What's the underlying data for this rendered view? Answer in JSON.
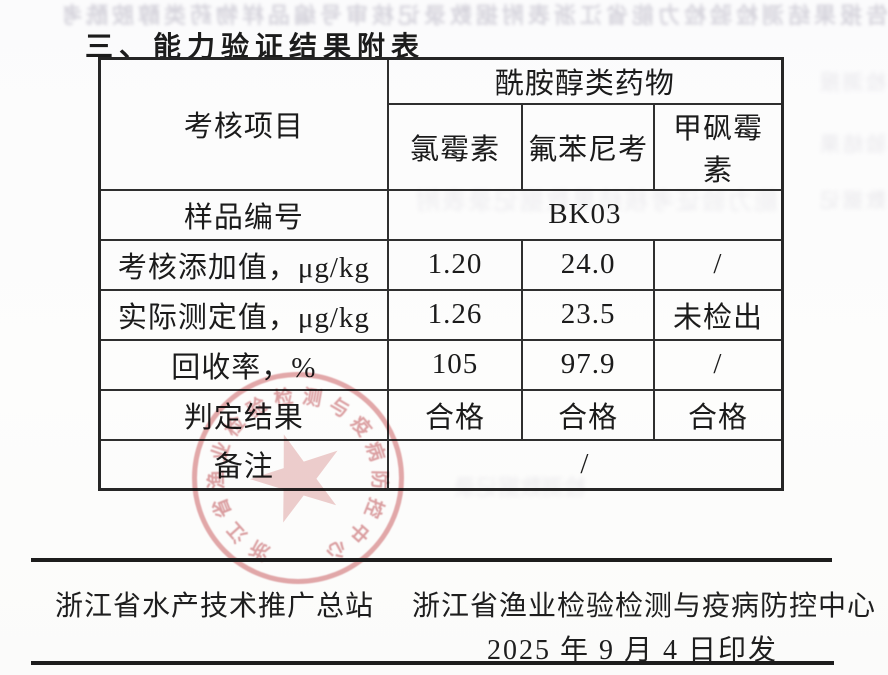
{
  "document": {
    "title": "三、能力验证结果附表"
  },
  "table": {
    "corner_header": "考核项目",
    "group_header": "酰胺醇类药物",
    "drug_headers": [
      "氯霉素",
      "氟苯尼考",
      "甲砜霉素"
    ],
    "rows": [
      {
        "label": "样品编号",
        "value": "BK03"
      },
      {
        "label": "考核添加值，μg/kg",
        "values": [
          "1.20",
          "24.0",
          "/"
        ]
      },
      {
        "label": "实际测定值，μg/kg",
        "values": [
          "1.26",
          "23.5",
          "未检出"
        ]
      },
      {
        "label": "回收率，%",
        "values": [
          "105",
          "97.9",
          "/"
        ]
      },
      {
        "label": "判定结果",
        "values": [
          "合格",
          "合格",
          "合格"
        ]
      },
      {
        "label": "备注",
        "value": "/"
      }
    ]
  },
  "stamp": {
    "ring_text": "浙江省渔业检验检测与疫病防控中心",
    "icon": "star-icon",
    "color": "#c7585c"
  },
  "footer": {
    "org_primary": "浙江省水产技术推广总站",
    "org_secondary": "浙江省渔业检验检测与疫病防控中心",
    "issue_date": "2025 年 9 月 4 日印发"
  },
  "bleedthrough": {
    "top_band": "告报果结测检验检力能省江浙表附据数录记核审号编品样物药类醇胺酰考尼苯氟素霉氯格合",
    "side_marks": [
      "检测报",
      "验结果",
      "数据记"
    ],
    "sample_row_band": "能力验证考核结果数据记录表附",
    "below_table_band": "检测数据记录"
  }
}
